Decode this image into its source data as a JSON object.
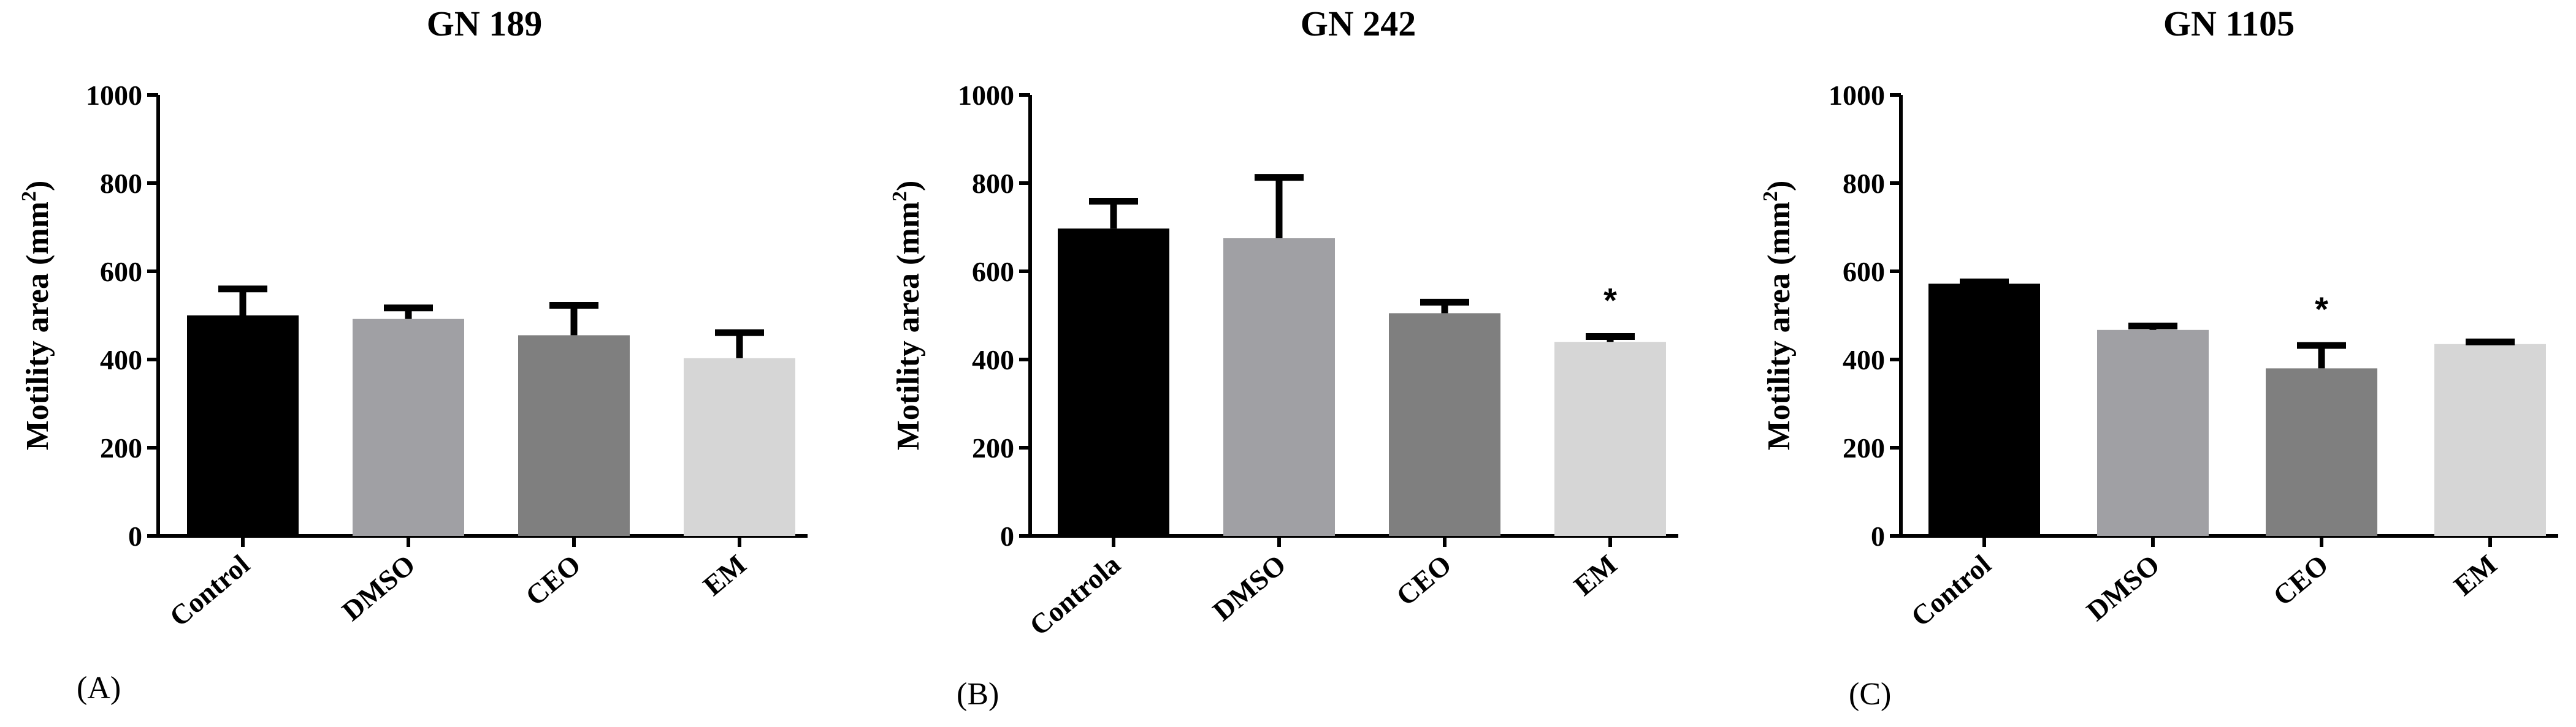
{
  "chart_data": [
    {
      "type": "bar",
      "title": "GN 189",
      "panel_label": "(A)",
      "ylabel": "Motility area (mm",
      "ylabel_sup": "2",
      "ylabel_close": ")",
      "ylim": [
        0,
        1000
      ],
      "yticks": [
        "0",
        "200",
        "400",
        "600",
        "800",
        "1000"
      ],
      "categories": [
        "Control",
        "DMSO",
        "CEO",
        "EM"
      ],
      "values": [
        500,
        492,
        455,
        403
      ],
      "errors": [
        60,
        25,
        68,
        58
      ],
      "colors": [
        "#000000",
        "#a0a0a4",
        "#7f7f7f",
        "#d6d6d6"
      ],
      "annotations": [
        "",
        "",
        "",
        ""
      ]
    },
    {
      "type": "bar",
      "title": "GN 242",
      "panel_label": "(B)",
      "ylabel": "Motility area (mm",
      "ylabel_sup": "2",
      "ylabel_close": ")",
      "ylim": [
        0,
        1000
      ],
      "yticks": [
        "0",
        "200",
        "400",
        "600",
        "800",
        "1000"
      ],
      "categories": [
        "Controla",
        "DMSO",
        "CEO",
        "EM"
      ],
      "values": [
        697,
        675,
        505,
        440
      ],
      "errors": [
        62,
        138,
        25,
        12
      ],
      "colors": [
        "#000000",
        "#a0a0a4",
        "#7f7f7f",
        "#d6d6d6"
      ],
      "annotations": [
        "",
        "",
        "",
        "*"
      ]
    },
    {
      "type": "bar",
      "title": "GN 1105",
      "panel_label": "(C)",
      "ylabel": "Motility area (mm",
      "ylabel_sup": "2",
      "ylabel_close": ")",
      "ylim": [
        0,
        1000
      ],
      "yticks": [
        "0",
        "200",
        "400",
        "600",
        "800",
        "1000"
      ],
      "categories": [
        "Control",
        "DMSO",
        "CEO",
        "EM"
      ],
      "values": [
        572,
        467,
        380,
        435
      ],
      "errors": [
        4,
        9,
        52,
        5
      ],
      "colors": [
        "#000000",
        "#a0a0a4",
        "#7f7f7f",
        "#d6d6d6"
      ],
      "annotations": [
        "",
        "",
        "*",
        ""
      ]
    }
  ]
}
